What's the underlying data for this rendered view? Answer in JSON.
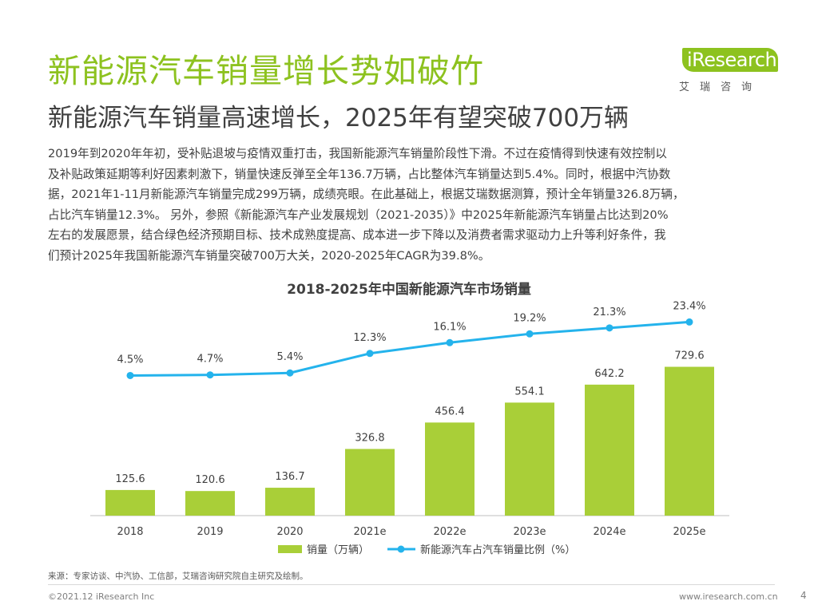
{
  "header": {
    "title": "新能源汽车销量增长势如破竹",
    "subtitle": "新能源汽车销量高速增长，2025年有望突破700万辆"
  },
  "logo": {
    "name": "iResearch",
    "cn_name": "艾瑞咨询",
    "brand_color": "#8dc21f"
  },
  "intro": {
    "lines": [
      "2019年到2020年年初，受补贴退坡与疫情双重打击，我国新能源汽车销量阶段性下滑。不过在疫情得到快速有效控制以",
      "及补贴政策延期等利好因素刺激下，销量快速反弹至全年136.7万辆，占比整体汽车销量达到5.4%。同时，根据中汽协数",
      "据，2021年1-11月新能源汽车销量完成299万辆，成绩亮眼。在此基础上，根据艾瑞数据测算，预计全年销量326.8万辆，",
      "占比汽车销量12.3%。  另外，参照《新能源汽车产业发展规划（2021-2035）》中2025年新能源汽车销量占比达到20%",
      "左右的发展愿景，结合绿色经济预期目标、技术成熟度提高、成本进一步下降以及消费者需求驱动力上升等利好条件，我",
      "们预计2025年我国新能源汽车销量突破700万大关，2020-2025年CAGR为39.8%。"
    ]
  },
  "chart_data": {
    "type": "bar",
    "title": "2018-2025年中国新能源汽车市场销量",
    "categories": [
      "2018",
      "2019",
      "2020",
      "2021e",
      "2022e",
      "2023e",
      "2024e",
      "2025e"
    ],
    "series": [
      {
        "name": "销量（万辆）",
        "type": "bar",
        "color": "#a9cf38",
        "values": [
          125.6,
          120.6,
          136.7,
          326.8,
          456.4,
          554.1,
          642.2,
          729.6
        ],
        "labels": [
          "125.6",
          "120.6",
          "136.7",
          "326.8",
          "456.4",
          "554.1",
          "642.2",
          "729.6"
        ]
      },
      {
        "name": "新能源汽车占汽车销量比例（%）",
        "type": "line",
        "color": "#24b3ec",
        "values": [
          4.5,
          4.7,
          5.4,
          12.3,
          16.1,
          19.2,
          21.3,
          23.4
        ],
        "labels": [
          "4.5%",
          "4.7%",
          "5.4%",
          "12.3%",
          "16.1%",
          "19.2%",
          "21.3%",
          "23.4%"
        ]
      }
    ],
    "xlabel": "",
    "ylabel": "",
    "ylim_bar": [
      0,
      900
    ],
    "ylim_line": [
      -45,
      30
    ],
    "grid": false,
    "legend_position": "bottom"
  },
  "footer": {
    "source": "来源：专家访谈、中汽协、工信部，艾瑞咨询研究院自主研究及绘制。",
    "copyright": "©2021.12 iResearch Inc",
    "website": "www.iresearch.com.cn",
    "page_number": "4"
  }
}
